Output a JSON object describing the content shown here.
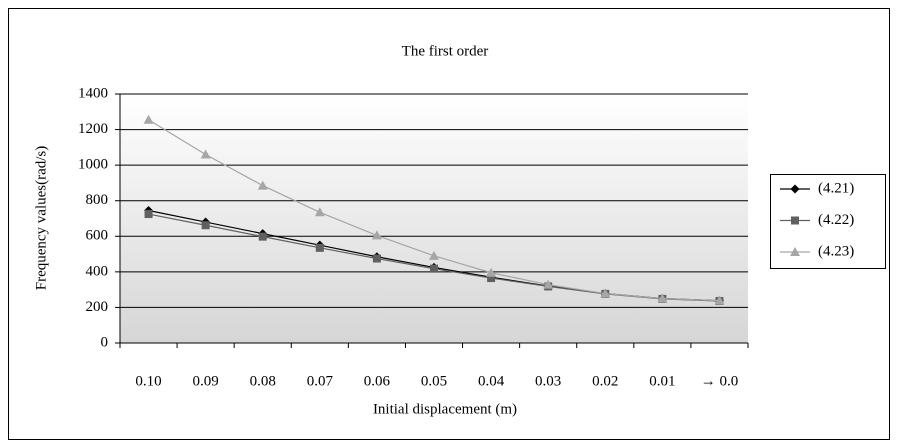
{
  "chart_data": {
    "type": "line",
    "title": "The first order",
    "x_label": "Initial displacement (m)",
    "y_label": "Frequency values(rad/s)",
    "categories": [
      "0.10",
      "0.09",
      "0.08",
      "0.07",
      "0.06",
      "0.05",
      "0.04",
      "0.03",
      "0.02",
      "0.01",
      "→ 0.0"
    ],
    "series": [
      {
        "name": "(4.21)",
        "color": "#000000",
        "marker": "diamond",
        "values": [
          745,
          680,
          615,
          550,
          485,
          425,
          370,
          320,
          278,
          250,
          238
        ]
      },
      {
        "name": "(4.22)",
        "color": "#606060",
        "marker": "square",
        "values": [
          725,
          662,
          598,
          535,
          475,
          418,
          365,
          318,
          276,
          248,
          236
        ]
      },
      {
        "name": "(4.23)",
        "color": "#a6a6a6",
        "marker": "triangle",
        "values": [
          1255,
          1060,
          885,
          735,
          605,
          490,
          395,
          328,
          278,
          250,
          238
        ]
      }
    ],
    "ylim": [
      0,
      1400
    ],
    "yticks": [
      0,
      200,
      400,
      600,
      800,
      1000,
      1200,
      1400
    ],
    "grid": true,
    "legend": "right"
  }
}
